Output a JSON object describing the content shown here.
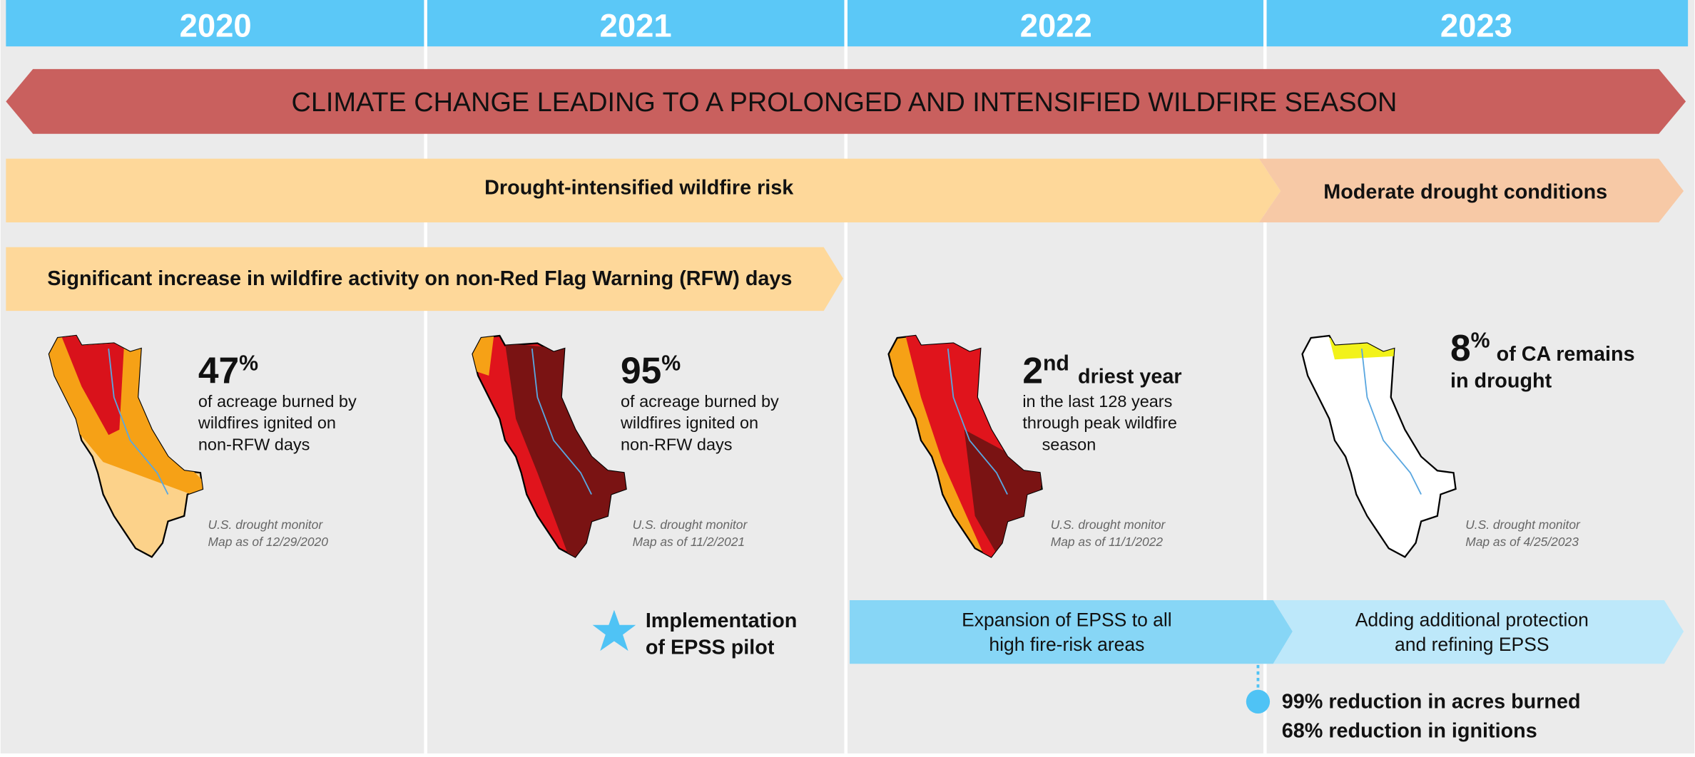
{
  "years": [
    "2020",
    "2021",
    "2022",
    "2023"
  ],
  "banner": "CLIMATE CHANGE LEADING TO A PROLONGED AND INTENSIFIED WILDFIRE SEASON",
  "drought_bands": [
    "Drought-intensified wildfire risk",
    "Moderate drought conditions"
  ],
  "rfw_band": "Significant increase in wildfire activity on non-Red Flag Warning (RFW) days",
  "panels": [
    {
      "stat": "47",
      "sup": "%",
      "lines": [
        "of acreage burned by",
        "wildfires ignited on",
        "non-RFW days"
      ],
      "source": [
        "U.S. drought monitor",
        "Map as of 12/29/2020"
      ]
    },
    {
      "stat": "95",
      "sup": "%",
      "lines": [
        "of acreage burned by",
        "wildfires ignited on",
        "non-RFW days"
      ],
      "source": [
        "U.S. drought monitor",
        "Map as of 11/2/2021"
      ]
    },
    {
      "stat": "2",
      "sup": "nd",
      "headline": "driest year",
      "lines": [
        "in the last 128 years",
        "through peak wildfire",
        "season"
      ],
      "source": [
        "U.S. drought monitor",
        "Map as of 11/1/2022"
      ]
    },
    {
      "stat": "8",
      "sup": "%",
      "headline": "of CA remains",
      "headline2": "in drought",
      "source": [
        "U.S. drought monitor",
        "Map as of 4/25/2023"
      ]
    }
  ],
  "epss": {
    "pilot": [
      "Implementation",
      "of EPSS pilot"
    ],
    "expansion": [
      "Expansion of EPSS to all",
      "high fire-risk areas"
    ],
    "refine": [
      "Adding additional protection",
      "and refining EPSS"
    ],
    "results": [
      "99% reduction in acres burned",
      "68% reduction in ignitions"
    ]
  }
}
